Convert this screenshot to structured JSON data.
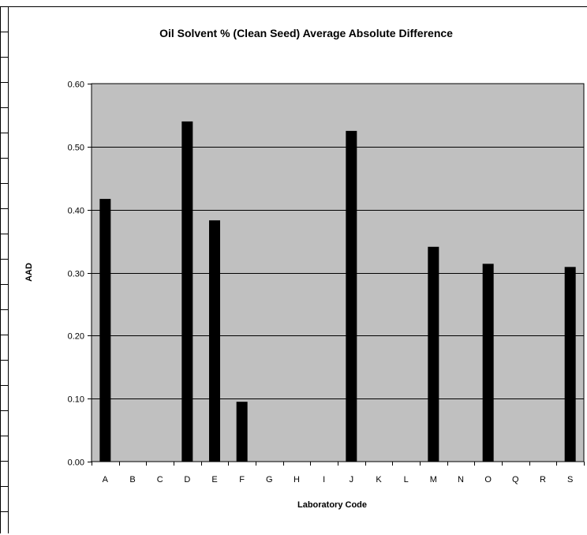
{
  "chart_data": {
    "type": "bar",
    "title": "Oil Solvent % (Clean Seed) Average Absolute Difference",
    "xlabel": "Laboratory Code",
    "ylabel": "AAD",
    "categories": [
      "A",
      "B",
      "C",
      "D",
      "E",
      "F",
      "G",
      "H",
      "I",
      "J",
      "K",
      "L",
      "M",
      "N",
      "O",
      "Q",
      "R",
      "S"
    ],
    "values": [
      0.417,
      null,
      null,
      0.54,
      0.383,
      0.095,
      null,
      null,
      null,
      0.525,
      null,
      null,
      0.341,
      null,
      0.314,
      null,
      null,
      0.309
    ],
    "ylim": [
      0,
      0.6
    ],
    "yticks": [
      "0.00",
      "0.10",
      "0.20",
      "0.30",
      "0.40",
      "0.50",
      "0.60"
    ],
    "grid": true,
    "legend": "none",
    "colors": {
      "plot_bg": "#c0c0c0",
      "bar": "#000000",
      "grid": "#000000"
    }
  }
}
